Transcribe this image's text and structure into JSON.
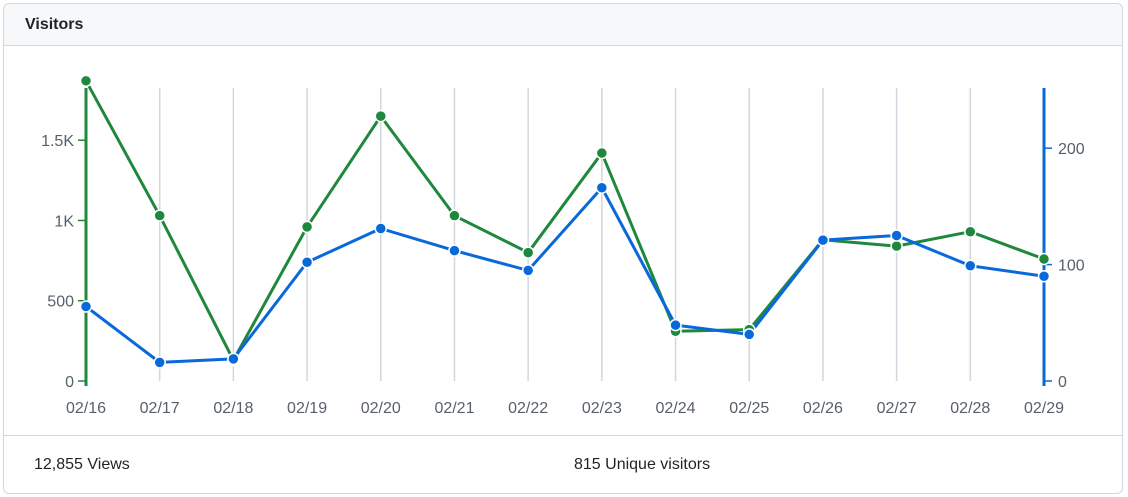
{
  "header": {
    "title": "Visitors"
  },
  "footer": {
    "views": "12,855 Views",
    "unique": "815 Unique visitors"
  },
  "colors": {
    "views": "#1f883d",
    "unique": "#0969da",
    "grid": "#d0d7de",
    "tick": "#57606a"
  },
  "chart_data": {
    "type": "line",
    "categories": [
      "02/16",
      "02/17",
      "02/18",
      "02/19",
      "02/20",
      "02/21",
      "02/22",
      "02/23",
      "02/24",
      "02/25",
      "02/26",
      "02/27",
      "02/28",
      "02/29"
    ],
    "y_left": {
      "range": [
        0,
        1900
      ],
      "ticks": [
        0,
        500,
        1000,
        1500
      ],
      "tick_labels": [
        "0",
        "500",
        "1K",
        "1.5K"
      ]
    },
    "y_right": {
      "range": [
        0,
        262
      ],
      "ticks": [
        0,
        100,
        200
      ],
      "tick_labels": [
        "0",
        "100",
        "200"
      ]
    },
    "series": [
      {
        "key": "views",
        "axis": "left",
        "color": "#1f883d",
        "values": [
          1870,
          1030,
          130,
          960,
          1650,
          1030,
          800,
          1420,
          310,
          320,
          880,
          840,
          930,
          760
        ]
      },
      {
        "key": "unique",
        "axis": "right",
        "color": "#0969da",
        "values": [
          64,
          16,
          19,
          102,
          131,
          112,
          95,
          166,
          48,
          40,
          121,
          125,
          99,
          90
        ]
      }
    ]
  }
}
